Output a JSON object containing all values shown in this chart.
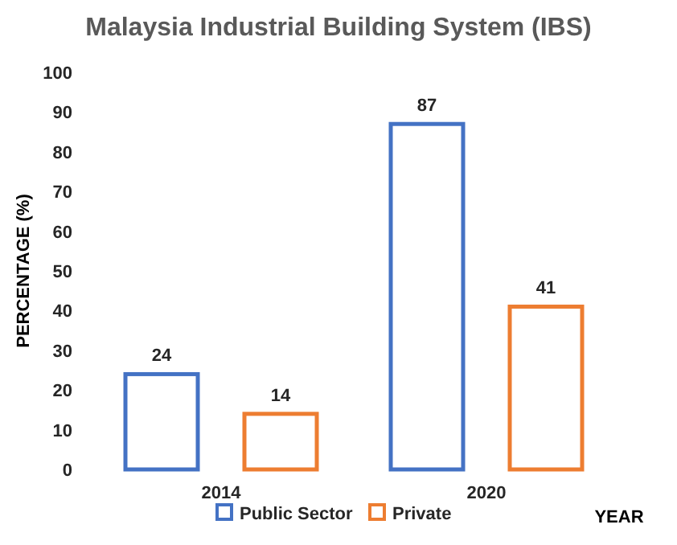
{
  "chart_data": {
    "type": "bar",
    "title": "Malaysia Industrial Building System (IBS)",
    "xlabel": "YEAR",
    "ylabel": "PERCENTAGE (%)",
    "categories": [
      "2014",
      "2020"
    ],
    "series": [
      {
        "name": "Public Sector",
        "color": "#4472c4",
        "values": [
          24,
          87
        ]
      },
      {
        "name": "Private",
        "color": "#ed7d31",
        "values": [
          14,
          41
        ]
      }
    ],
    "ylim": [
      0,
      100
    ],
    "yticks": [
      0,
      10,
      20,
      30,
      40,
      50,
      60,
      70,
      80,
      90,
      100
    ],
    "data_labels": true,
    "legend": "bottom",
    "grid": false
  }
}
